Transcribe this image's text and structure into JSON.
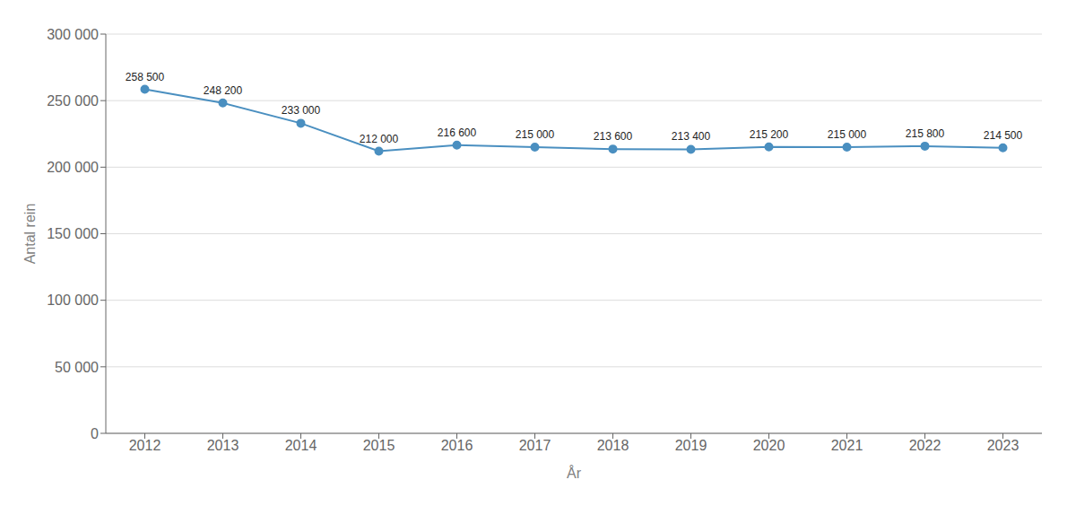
{
  "chart_data": {
    "type": "line",
    "x": [
      2012,
      2013,
      2014,
      2015,
      2016,
      2017,
      2018,
      2019,
      2020,
      2021,
      2022,
      2023
    ],
    "values": [
      258500,
      248200,
      233000,
      212000,
      216600,
      215000,
      213600,
      213400,
      215200,
      215000,
      215800,
      214500
    ],
    "value_labels": [
      "258 500",
      "248 200",
      "233 000",
      "212 000",
      "216 600",
      "215 000",
      "213 600",
      "213 400",
      "215 200",
      "215 000",
      "215 800",
      "214 500"
    ],
    "color": "#4a8fc0",
    "marker": "circle",
    "xlabel": "År",
    "ylabel": "Antal rein",
    "xlim": [
      2011.5,
      2023.5
    ],
    "xticks": [
      2012,
      2013,
      2014,
      2015,
      2016,
      2017,
      2018,
      2019,
      2020,
      2021,
      2022,
      2023
    ],
    "ylim": [
      0,
      300000
    ],
    "yticks": [
      0,
      {
        "value": 50000,
        "label": "50 000"
      },
      {
        "value": 100000,
        "label": "100 000"
      },
      {
        "value": 150000,
        "label": "150 000"
      },
      {
        "value": 200000,
        "label": "200 000"
      },
      {
        "value": 250000,
        "label": "250 000"
      },
      {
        "value": 300000,
        "label": "300 000"
      }
    ],
    "grid": "y",
    "data_labels": true
  }
}
